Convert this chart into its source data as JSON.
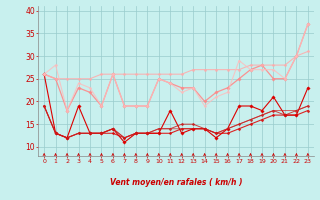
{
  "xlabel": "Vent moyen/en rafales ( km/h )",
  "x": [
    0,
    1,
    2,
    3,
    4,
    5,
    6,
    7,
    8,
    9,
    10,
    11,
    12,
    13,
    14,
    15,
    16,
    17,
    18,
    19,
    20,
    21,
    22,
    23
  ],
  "ylim": [
    8,
    41
  ],
  "xlim": [
    -0.5,
    23.5
  ],
  "yticks": [
    10,
    15,
    20,
    25,
    30,
    35,
    40
  ],
  "background_color": "#c8f0ee",
  "grid_color": "#99cccc",
  "lines": [
    {
      "y": [
        26,
        13,
        12,
        19,
        13,
        13,
        14,
        11,
        13,
        13,
        13,
        18,
        13,
        14,
        14,
        12,
        14,
        19,
        19,
        18,
        21,
        17,
        17,
        23
      ],
      "color": "#dd0000",
      "linewidth": 0.8,
      "marker": "D",
      "markersize": 1.8,
      "alpha": 1.0
    },
    {
      "y": [
        19,
        13,
        12,
        13,
        13,
        13,
        13,
        12,
        13,
        13,
        13,
        13,
        14,
        14,
        14,
        13,
        13,
        14,
        15,
        16,
        17,
        17,
        17,
        18
      ],
      "color": "#dd0000",
      "linewidth": 0.8,
      "marker": "D",
      "markersize": 1.5,
      "alpha": 0.85
    },
    {
      "y": [
        19,
        13,
        12,
        13,
        13,
        13,
        14,
        12,
        13,
        13,
        14,
        14,
        15,
        15,
        14,
        13,
        14,
        15,
        16,
        17,
        18,
        17,
        18,
        19
      ],
      "color": "#cc1111",
      "linewidth": 0.7,
      "marker": "D",
      "markersize": 1.5,
      "alpha": 0.8
    },
    {
      "y": [
        19,
        13,
        12,
        13,
        13,
        13,
        14,
        12,
        13,
        13,
        14,
        14,
        14,
        14,
        14,
        13,
        14,
        15,
        16,
        17,
        18,
        18,
        18,
        19
      ],
      "color": "#cc2222",
      "linewidth": 0.7,
      "marker": null,
      "markersize": 0,
      "alpha": 0.7
    },
    {
      "y": [
        26,
        25,
        18,
        23,
        22,
        19,
        26,
        19,
        19,
        19,
        25,
        24,
        23,
        23,
        20,
        22,
        23,
        25,
        27,
        28,
        25,
        25,
        30,
        37
      ],
      "color": "#ff8888",
      "linewidth": 0.9,
      "marker": "D",
      "markersize": 1.8,
      "alpha": 0.9
    },
    {
      "y": [
        26,
        25,
        25,
        25,
        25,
        26,
        26,
        26,
        26,
        26,
        26,
        26,
        26,
        27,
        27,
        27,
        27,
        27,
        28,
        28,
        28,
        28,
        30,
        31
      ],
      "color": "#ffaaaa",
      "linewidth": 0.8,
      "marker": "D",
      "markersize": 1.5,
      "alpha": 0.85
    },
    {
      "y": [
        26,
        28,
        18,
        24,
        23,
        19,
        26,
        19,
        19,
        19,
        25,
        24,
        22,
        23,
        19,
        21,
        22,
        29,
        27,
        27,
        27,
        25,
        30,
        37
      ],
      "color": "#ffbbbb",
      "linewidth": 0.8,
      "marker": "D",
      "markersize": 1.5,
      "alpha": 0.8
    }
  ]
}
